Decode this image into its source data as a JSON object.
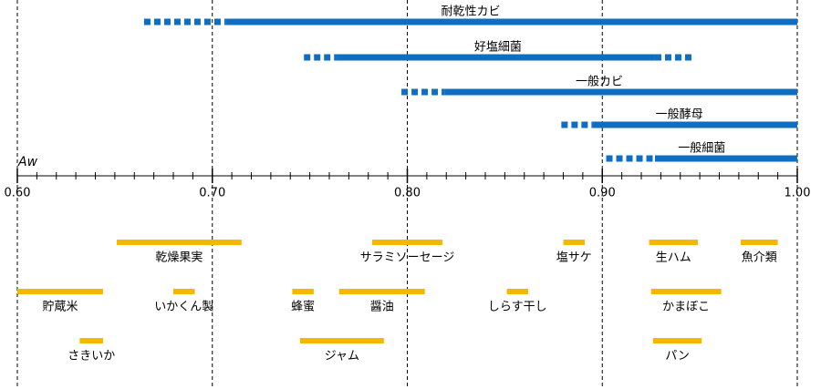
{
  "chart_data": {
    "type": "range",
    "axis_label": "Aw",
    "xlim": [
      0.6,
      1.0
    ],
    "xticks": [
      {
        "value": 0.6,
        "label": "0.60"
      },
      {
        "value": 0.7,
        "label": "0.70"
      },
      {
        "value": 0.8,
        "label": "0.80"
      },
      {
        "value": 0.9,
        "label": "0.90"
      },
      {
        "value": 1.0,
        "label": "1.00"
      }
    ],
    "xminor_step": 0.01,
    "grid": true,
    "microbe_color": "#0f6ec0",
    "food_color": "#f5b800",
    "microbes": [
      {
        "name": "耐乾性カビ",
        "segments": [
          {
            "start": 0.665,
            "end": 0.707,
            "style": "dashed"
          },
          {
            "start": 0.707,
            "end": 1.0,
            "style": "solid"
          }
        ]
      },
      {
        "name": "好塩細菌",
        "segments": [
          {
            "start": 0.747,
            "end": 0.764,
            "style": "dashed"
          },
          {
            "start": 0.764,
            "end": 0.927,
            "style": "solid"
          },
          {
            "start": 0.927,
            "end": 0.946,
            "style": "dashed"
          }
        ]
      },
      {
        "name": "一般カビ",
        "segments": [
          {
            "start": 0.797,
            "end": 0.819,
            "style": "dashed"
          },
          {
            "start": 0.819,
            "end": 1.0,
            "style": "solid"
          }
        ]
      },
      {
        "name": "一般酵母",
        "segments": [
          {
            "start": 0.879,
            "end": 0.895,
            "style": "dashed"
          },
          {
            "start": 0.895,
            "end": 1.0,
            "style": "solid"
          }
        ]
      },
      {
        "name": "一般細菌",
        "segments": [
          {
            "start": 0.902,
            "end": 0.927,
            "style": "dashed"
          },
          {
            "start": 0.927,
            "end": 1.0,
            "style": "solid"
          }
        ]
      }
    ],
    "food_rows": [
      [
        {
          "name": "乾燥果実",
          "start": 0.651,
          "end": 0.715
        },
        {
          "name": "サラミソーセージ",
          "start": 0.782,
          "end": 0.818
        },
        {
          "name": "塩サケ",
          "start": 0.88,
          "end": 0.891
        },
        {
          "name": "生ハム",
          "start": 0.924,
          "end": 0.949
        },
        {
          "name": "魚介類",
          "start": 0.971,
          "end": 0.99
        }
      ],
      [
        {
          "name": "貯蔵米",
          "start": 0.6,
          "end": 0.644
        },
        {
          "name": "いかくん製",
          "start": 0.68,
          "end": 0.691
        },
        {
          "name": "蜂蜜",
          "start": 0.741,
          "end": 0.752
        },
        {
          "name": "醤油",
          "start": 0.765,
          "end": 0.809
        },
        {
          "name": "しらす干し",
          "start": 0.851,
          "end": 0.862
        },
        {
          "name": "かまぼこ",
          "start": 0.925,
          "end": 0.961
        }
      ],
      [
        {
          "name": "さきいか",
          "start": 0.632,
          "end": 0.644
        },
        {
          "name": "ジャム",
          "start": 0.745,
          "end": 0.788
        },
        {
          "name": "パン",
          "start": 0.926,
          "end": 0.951
        }
      ]
    ]
  }
}
